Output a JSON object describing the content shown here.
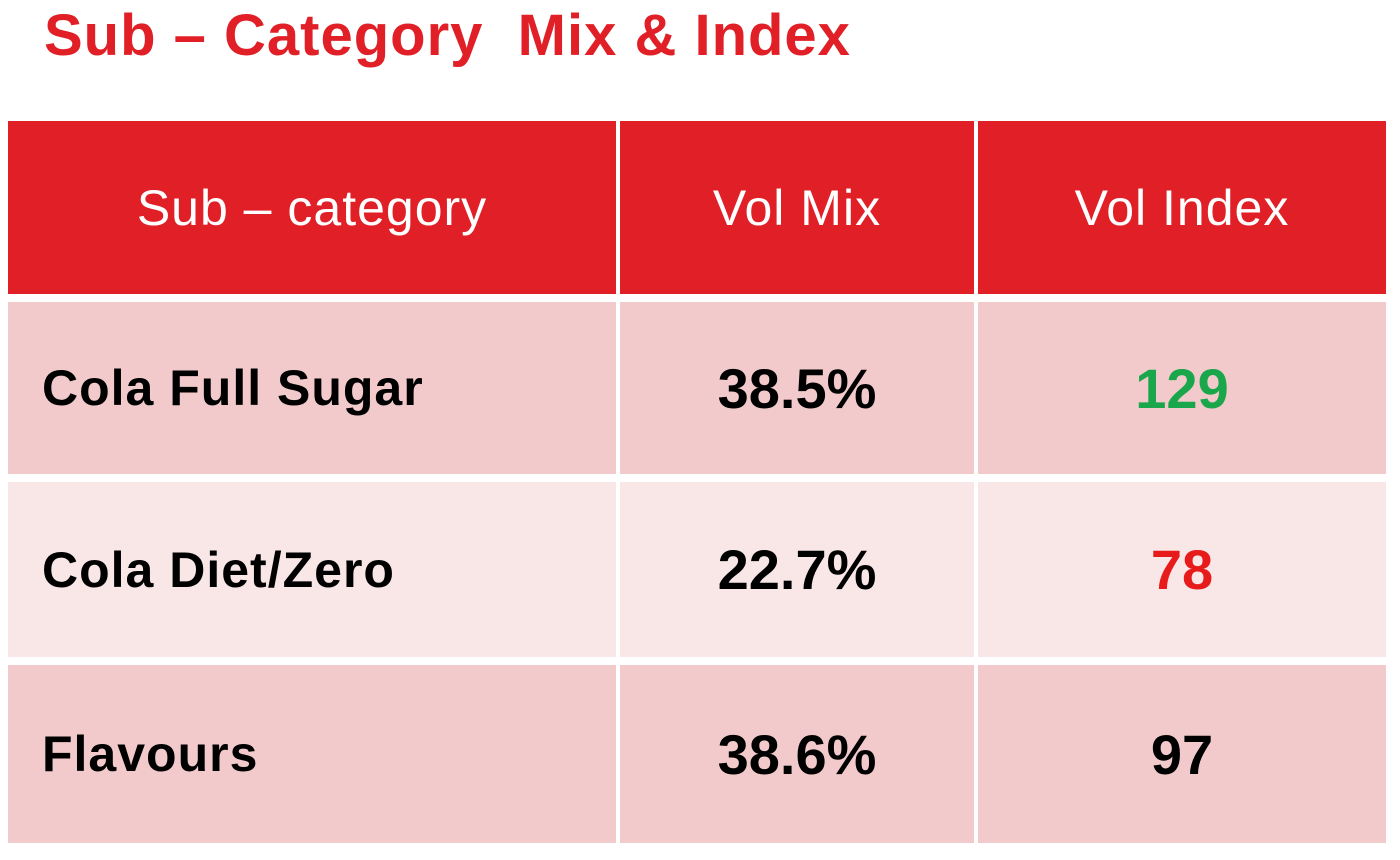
{
  "title": "Sub – Category  Mix & Index",
  "colors": {
    "accent_red": "#e01f26",
    "header_text": "#ffffff",
    "row_dark": "#f2cacc",
    "row_light": "#f9e6e7",
    "index_positive": "#1aa64b",
    "index_negative": "#e81b1b",
    "index_neutral": "#000000"
  },
  "chart_data": {
    "type": "table",
    "columns": [
      "Sub – category",
      "Vol Mix",
      "Vol Index"
    ],
    "rows": [
      {
        "sub_category": "Cola Full Sugar",
        "vol_mix": "38.5%",
        "vol_index": 129,
        "index_color": "#1aa64b"
      },
      {
        "sub_category": "Cola Diet/Zero",
        "vol_mix": "22.7%",
        "vol_index": 78,
        "index_color": "#e81b1b"
      },
      {
        "sub_category": "Flavours",
        "vol_mix": "38.6%",
        "vol_index": 97,
        "index_color": "#000000"
      }
    ]
  }
}
